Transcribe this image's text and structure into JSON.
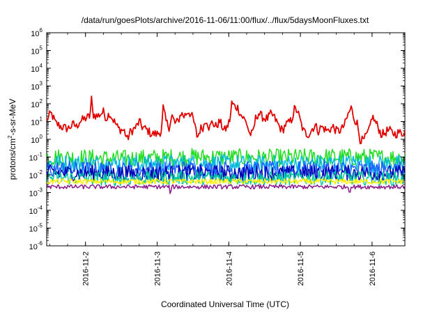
{
  "chart_data": {
    "type": "line",
    "title": "/data/run/goesPlots/archive/2016-11-06/11:00/flux/../flux/5daysMoonFluxes.txt",
    "xlabel": "Coordinated Universal Time (UTC)",
    "ylabel": {
      "pre": "protons/cm",
      "sup": "2",
      "post": "-s-sr-MeV"
    },
    "y_scale": "log",
    "ylim_exp": [
      -6,
      6
    ],
    "y_ticks": [
      {
        "base": "10",
        "exp": "-6"
      },
      {
        "base": "10",
        "exp": "-5"
      },
      {
        "base": "10",
        "exp": "-4"
      },
      {
        "base": "10",
        "exp": "-3"
      },
      {
        "base": "10",
        "exp": "-2"
      },
      {
        "base": "10",
        "exp": "-1"
      },
      {
        "base": "10",
        "exp": "0"
      },
      {
        "base": "10",
        "exp": "1"
      },
      {
        "base": "10",
        "exp": "2"
      },
      {
        "base": "10",
        "exp": "3"
      },
      {
        "base": "10",
        "exp": "4"
      },
      {
        "base": "10",
        "exp": "5"
      },
      {
        "base": "10",
        "exp": "6"
      }
    ],
    "xlim": [
      "2016-11-01 11:00",
      "2016-11-06 11:00"
    ],
    "x_ticks": [
      "2016-11-2",
      "2016-11-3",
      "2016-11-4",
      "2016-11-5",
      "2016-11-6"
    ],
    "x_tick_dates": [
      "2016-11-02 00:00",
      "2016-11-03 00:00",
      "2016-11-04 00:00",
      "2016-11-05 00:00",
      "2016-11-06 00:00"
    ],
    "grid": false,
    "legend": "none",
    "series": [
      {
        "color": "#e00000",
        "noise": 0.25,
        "points": [
          [
            "2016-11-01 11:00",
            12
          ],
          [
            "2016-11-01 12:30",
            30
          ],
          [
            "2016-11-01 14:00",
            8
          ],
          [
            "2016-11-01 16:00",
            5
          ],
          [
            "2016-11-01 18:00",
            4
          ],
          [
            "2016-11-01 20:00",
            7
          ],
          [
            "2016-11-01 21:00",
            5
          ],
          [
            "2016-11-01 22:00",
            10
          ],
          [
            "2016-11-02 00:00",
            15
          ],
          [
            "2016-11-02 01:30",
            20
          ],
          [
            "2016-11-02 02:00",
            180
          ],
          [
            "2016-11-02 02:30",
            25
          ],
          [
            "2016-11-02 04:00",
            20
          ],
          [
            "2016-11-02 06:00",
            35
          ],
          [
            "2016-11-02 07:00",
            15
          ],
          [
            "2016-11-02 08:00",
            30
          ],
          [
            "2016-11-02 09:00",
            15
          ],
          [
            "2016-11-02 10:00",
            8
          ],
          [
            "2016-11-02 11:00",
            4
          ],
          [
            "2016-11-02 13:00",
            3
          ],
          [
            "2016-11-02 14:00",
            1.0
          ],
          [
            "2016-11-02 15:00",
            2.5
          ],
          [
            "2016-11-02 17:00",
            5
          ],
          [
            "2016-11-02 18:00",
            10
          ],
          [
            "2016-11-02 19:00",
            5
          ],
          [
            "2016-11-02 21:00",
            3
          ],
          [
            "2016-11-02 22:00",
            2
          ],
          [
            "2016-11-03 00:00",
            2
          ],
          [
            "2016-11-03 01:30",
            3
          ],
          [
            "2016-11-03 02:00",
            60
          ],
          [
            "2016-11-03 03:00",
            10
          ],
          [
            "2016-11-03 04:00",
            5
          ],
          [
            "2016-11-03 05:00",
            20
          ],
          [
            "2016-11-03 06:00",
            8
          ],
          [
            "2016-11-03 07:00",
            10
          ],
          [
            "2016-11-03 08:00",
            30
          ],
          [
            "2016-11-03 09:00",
            20
          ],
          [
            "2016-11-03 10:30",
            40
          ],
          [
            "2016-11-03 12:00",
            15
          ],
          [
            "2016-11-03 13:00",
            3
          ],
          [
            "2016-11-03 13:30",
            1.2
          ],
          [
            "2016-11-03 14:30",
            4
          ],
          [
            "2016-11-03 15:30",
            5
          ],
          [
            "2016-11-03 16:30",
            15
          ],
          [
            "2016-11-03 17:30",
            4
          ],
          [
            "2016-11-03 18:30",
            10
          ],
          [
            "2016-11-03 19:30",
            5
          ],
          [
            "2016-11-03 21:00",
            10
          ],
          [
            "2016-11-03 22:30",
            3
          ],
          [
            "2016-11-03 23:30",
            5
          ],
          [
            "2016-11-04 00:30",
            15
          ],
          [
            "2016-11-04 01:00",
            110
          ],
          [
            "2016-11-04 02:00",
            70
          ],
          [
            "2016-11-04 03:00",
            60
          ],
          [
            "2016-11-04 04:00",
            25
          ],
          [
            "2016-11-04 05:00",
            15
          ],
          [
            "2016-11-04 06:00",
            8
          ],
          [
            "2016-11-04 07:00",
            2
          ],
          [
            "2016-11-04 08:00",
            2
          ],
          [
            "2016-11-04 09:00",
            15
          ],
          [
            "2016-11-04 10:00",
            30
          ],
          [
            "2016-11-04 11:00",
            20
          ],
          [
            "2016-11-04 12:00",
            15
          ],
          [
            "2016-11-04 13:00",
            15
          ],
          [
            "2016-11-04 14:00",
            25
          ],
          [
            "2016-11-04 15:00",
            20
          ],
          [
            "2016-11-04 16:00",
            10
          ],
          [
            "2016-11-04 17:00",
            5
          ],
          [
            "2016-11-04 18:00",
            3
          ],
          [
            "2016-11-04 19:00",
            7
          ],
          [
            "2016-11-04 20:00",
            8
          ],
          [
            "2016-11-04 21:00",
            12
          ],
          [
            "2016-11-04 22:00",
            50
          ],
          [
            "2016-11-04 23:00",
            40
          ],
          [
            "2016-11-05 00:00",
            10
          ],
          [
            "2016-11-05 01:00",
            3
          ],
          [
            "2016-11-05 02:00",
            2
          ],
          [
            "2016-11-05 03:00",
            2
          ],
          [
            "2016-11-05 04:00",
            4
          ],
          [
            "2016-11-05 05:00",
            6
          ],
          [
            "2016-11-05 06:00",
            3
          ],
          [
            "2016-11-05 07:00",
            5
          ],
          [
            "2016-11-05 08:00",
            4
          ],
          [
            "2016-11-05 09:00",
            3
          ],
          [
            "2016-11-05 11:00",
            5
          ],
          [
            "2016-11-05 12:00",
            3
          ],
          [
            "2016-11-05 13:00",
            3
          ],
          [
            "2016-11-05 14:00",
            4
          ],
          [
            "2016-11-05 15:00",
            8
          ],
          [
            "2016-11-05 16:00",
            25
          ],
          [
            "2016-11-05 17:00",
            60
          ],
          [
            "2016-11-05 18:00",
            15
          ],
          [
            "2016-11-05 19:00",
            8
          ],
          [
            "2016-11-05 20:00",
            1.0
          ],
          [
            "2016-11-05 21:00",
            0.8
          ],
          [
            "2016-11-05 22:00",
            1.5
          ],
          [
            "2016-11-05 23:00",
            3
          ],
          [
            "2016-11-06 00:00",
            20
          ],
          [
            "2016-11-06 01:00",
            10
          ],
          [
            "2016-11-06 02:00",
            5
          ],
          [
            "2016-11-06 03:00",
            2
          ],
          [
            "2016-11-06 04:00",
            2
          ],
          [
            "2016-11-06 05:00",
            3
          ],
          [
            "2016-11-06 06:00",
            3
          ],
          [
            "2016-11-06 07:00",
            2.2
          ],
          [
            "2016-11-06 08:00",
            2
          ],
          [
            "2016-11-06 09:00",
            2.5
          ],
          [
            "2016-11-06 10:00",
            2
          ],
          [
            "2016-11-06 11:00",
            3
          ]
        ]
      },
      {
        "color": "#22dd22",
        "noise": 0.5,
        "points": [
          [
            "2016-11-01 11:00",
            0.1
          ],
          [
            "2016-11-02 12:00",
            0.08
          ],
          [
            "2016-11-03 12:00",
            0.1
          ],
          [
            "2016-11-04 12:00",
            0.09
          ],
          [
            "2016-11-05 12:00",
            0.1
          ],
          [
            "2016-11-06 11:00",
            0.09
          ]
        ]
      },
      {
        "color": "#00b8e0",
        "noise": 0.5,
        "points": [
          [
            "2016-11-01 11:00",
            0.045
          ],
          [
            "2016-11-02 12:00",
            0.04
          ],
          [
            "2016-11-03 12:00",
            0.045
          ],
          [
            "2016-11-04 12:00",
            0.04
          ],
          [
            "2016-11-05 12:00",
            0.045
          ],
          [
            "2016-11-06 11:00",
            0.04
          ]
        ]
      },
      {
        "color": "#1f5fff",
        "noise": 0.5,
        "points": [
          [
            "2016-11-01 11:00",
            0.02
          ],
          [
            "2016-11-02 12:00",
            0.018
          ],
          [
            "2016-11-03 12:00",
            0.02
          ],
          [
            "2016-11-04 12:00",
            0.018
          ],
          [
            "2016-11-05 12:00",
            0.02
          ],
          [
            "2016-11-06 11:00",
            0.018
          ]
        ]
      },
      {
        "color": "#0000b0",
        "noise": 0.45,
        "points": [
          [
            "2016-11-01 11:00",
            0.013
          ],
          [
            "2016-11-02 12:00",
            0.012
          ],
          [
            "2016-11-03 12:00",
            0.013
          ],
          [
            "2016-11-04 12:00",
            0.012
          ],
          [
            "2016-11-05 12:00",
            0.013
          ],
          [
            "2016-11-06 11:00",
            0.012
          ]
        ]
      },
      {
        "color": "#00c8a0",
        "noise": 0.4,
        "points": [
          [
            "2016-11-01 11:00",
            0.007
          ],
          [
            "2016-11-02 12:00",
            0.006
          ],
          [
            "2016-11-03 12:00",
            0.007
          ],
          [
            "2016-11-04 12:00",
            0.006
          ],
          [
            "2016-11-05 12:00",
            0.007
          ],
          [
            "2016-11-06 11:00",
            0.006
          ]
        ]
      },
      {
        "color": "#ffee00",
        "noise": 0.15,
        "points": [
          [
            "2016-11-01 11:00",
            0.0042
          ],
          [
            "2016-11-02 12:00",
            0.0042
          ],
          [
            "2016-11-03 12:00",
            0.0042
          ],
          [
            "2016-11-04 12:00",
            0.0042
          ],
          [
            "2016-11-05 12:00",
            0.0042
          ],
          [
            "2016-11-06 11:00",
            0.0042
          ]
        ]
      },
      {
        "color": "#8b1a8b",
        "noise": 0.12,
        "points": [
          [
            "2016-11-01 11:00",
            0.0021
          ],
          [
            "2016-11-02 12:00",
            0.0021
          ],
          [
            "2016-11-03 04:00",
            0.0021
          ],
          [
            "2016-11-03 04:30",
            0.0008
          ],
          [
            "2016-11-03 05:00",
            0.0021
          ],
          [
            "2016-11-04 12:00",
            0.0021
          ],
          [
            "2016-11-05 16:00",
            0.0021
          ],
          [
            "2016-11-05 16:30",
            0.0011
          ],
          [
            "2016-11-05 17:00",
            0.0021
          ],
          [
            "2016-11-06 11:00",
            0.0021
          ]
        ]
      }
    ]
  }
}
